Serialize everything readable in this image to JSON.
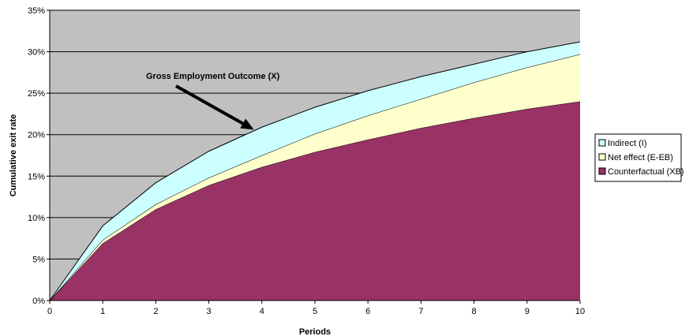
{
  "chart_data": {
    "type": "area",
    "stacked": true,
    "x": [
      0,
      1,
      2,
      3,
      4,
      5,
      6,
      7,
      8,
      9,
      10
    ],
    "xlabel": "Periods",
    "ylabel": "Cumulative exit rate",
    "ylim": [
      0,
      35
    ],
    "y_ticks": [
      "0%",
      "5%",
      "10%",
      "15%",
      "20%",
      "25%",
      "30%",
      "35%"
    ],
    "x_ticks": [
      "0",
      "1",
      "2",
      "3",
      "4",
      "5",
      "6",
      "7",
      "8",
      "9",
      "10"
    ],
    "grid": true,
    "legend_position": "right",
    "series": [
      {
        "name": "Counterfactual (XB)",
        "color": "#993366",
        "values": [
          0,
          6.9,
          11.0,
          13.9,
          16.1,
          17.9,
          19.4,
          20.8,
          22.0,
          23.1,
          24.0
        ]
      },
      {
        "name": "Net effect (E-EB)",
        "color": "#ffffcc",
        "values": [
          0,
          0.4,
          0.6,
          0.9,
          1.4,
          2.2,
          2.9,
          3.5,
          4.3,
          5.0,
          5.7
        ]
      },
      {
        "name": "Indirect (I)",
        "color": "#ccffff",
        "values": [
          0,
          1.7,
          2.6,
          3.2,
          3.4,
          3.2,
          3.0,
          2.7,
          2.2,
          1.9,
          1.5
        ]
      }
    ],
    "annotation": {
      "text": "Gross Employment Outcome (X)",
      "arrow_target_x": 3.85,
      "arrow_target_y": 20.6
    },
    "plot_background": "#c0c0c0"
  }
}
